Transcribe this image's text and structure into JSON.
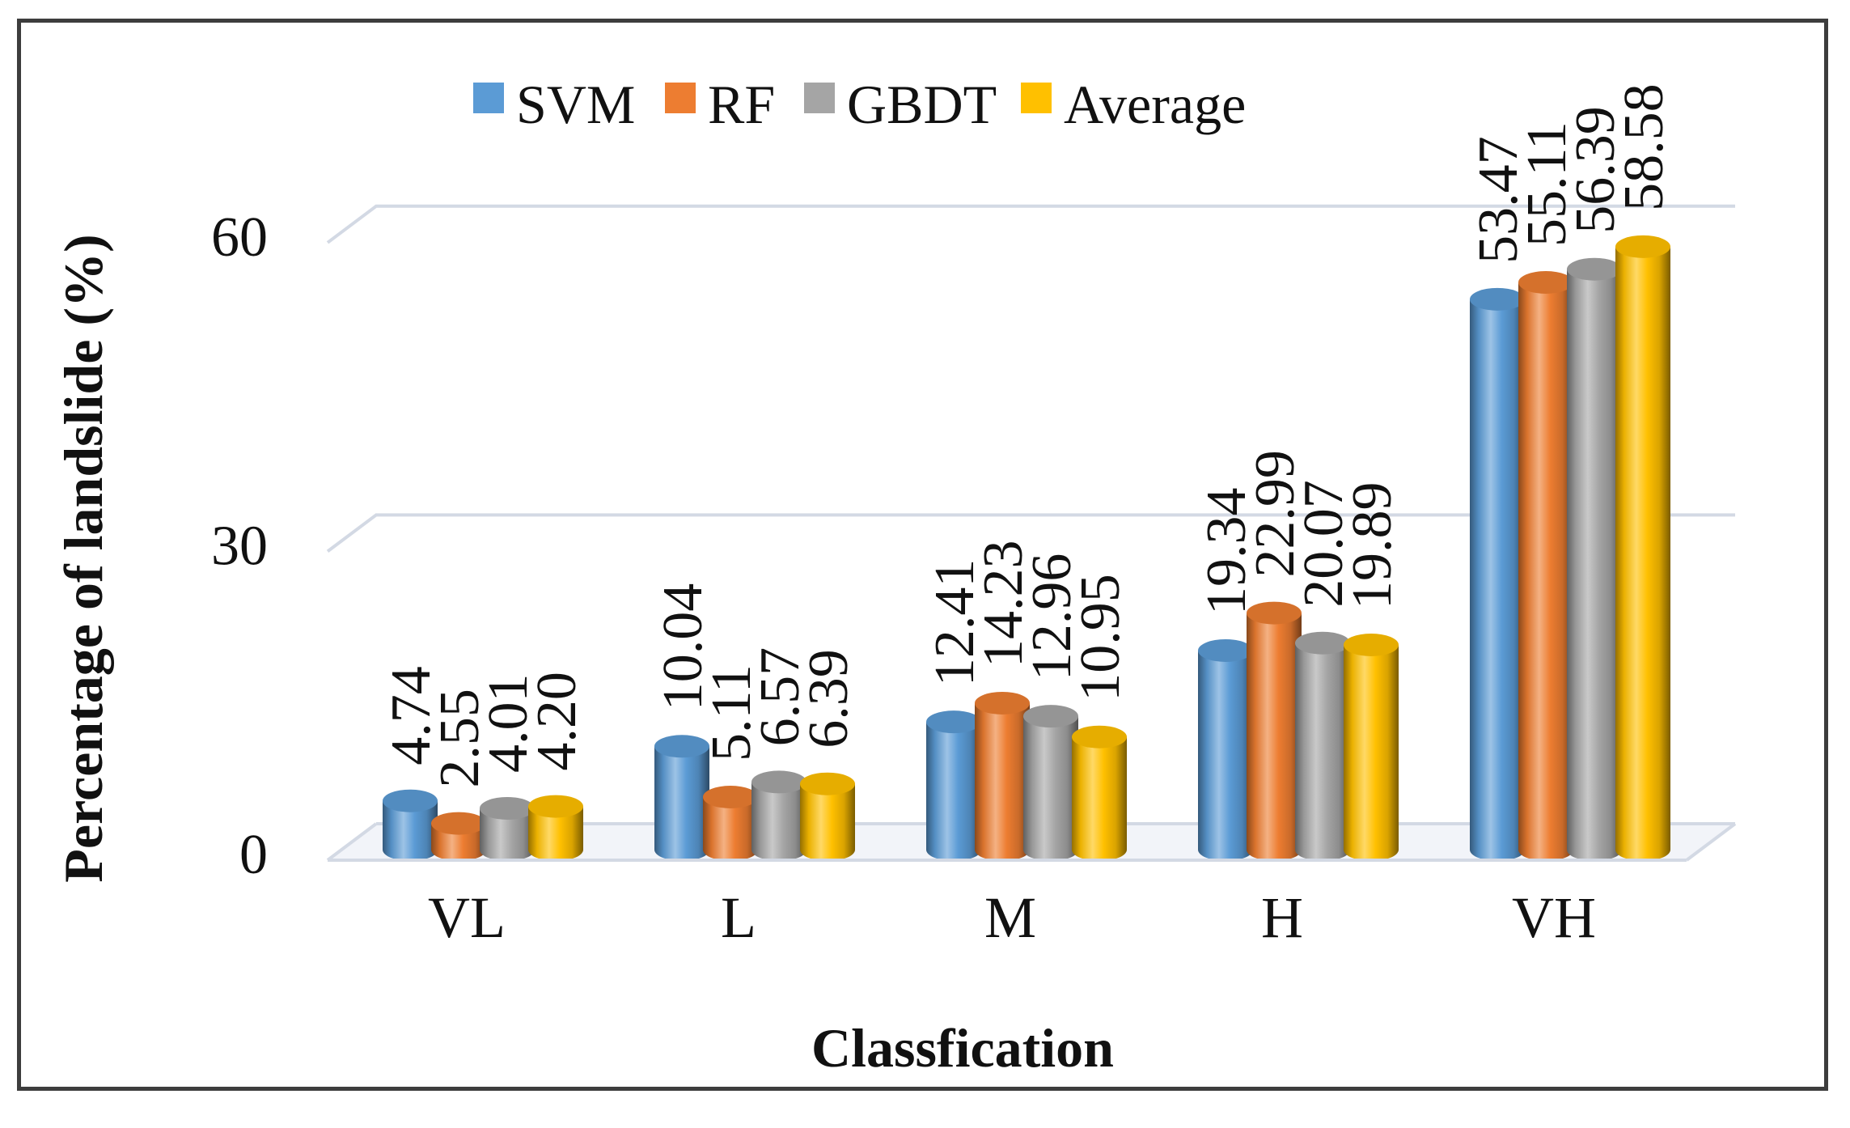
{
  "chart_data": {
    "type": "bar",
    "subtype": "3d-cylinder-clustered",
    "title": "",
    "xlabel": "Classfication",
    "ylabel": "Percentage of landslide  (%)",
    "categories": [
      "VL",
      "L",
      "M",
      "H",
      "VH"
    ],
    "series": [
      {
        "name": "SVM",
        "color": "#5B9BD5",
        "values": [
          4.74,
          10.04,
          12.41,
          19.34,
          53.47
        ],
        "labels": [
          "4.74",
          "10.04",
          "12.41",
          "19.34",
          "53.47"
        ]
      },
      {
        "name": "RF",
        "color": "#ED7D31",
        "values": [
          2.55,
          5.11,
          14.23,
          22.99,
          55.11
        ],
        "labels": [
          "2.55",
          "5.11",
          "14.23",
          "22.99",
          "55.11"
        ]
      },
      {
        "name": "GBDT",
        "color": "#A5A5A5",
        "values": [
          4.01,
          6.57,
          12.96,
          20.07,
          56.39
        ],
        "labels": [
          "4.01",
          "6.57",
          "12.96",
          "20.07",
          "56.39"
        ]
      },
      {
        "name": "Average",
        "color": "#FFC000",
        "values": [
          4.2,
          6.39,
          10.95,
          19.89,
          58.58
        ],
        "labels": [
          "4.20",
          "6.39",
          "10.95",
          "19.89",
          "58.58"
        ]
      }
    ],
    "yticks": [
      "0",
      "30",
      "60"
    ],
    "ylim": [
      0,
      60
    ],
    "grid": "horizontal",
    "legend_position": "top-center",
    "gridline_color": "#D3D9E4",
    "border_color": "#3D3D3D",
    "label_color": "#111111"
  }
}
